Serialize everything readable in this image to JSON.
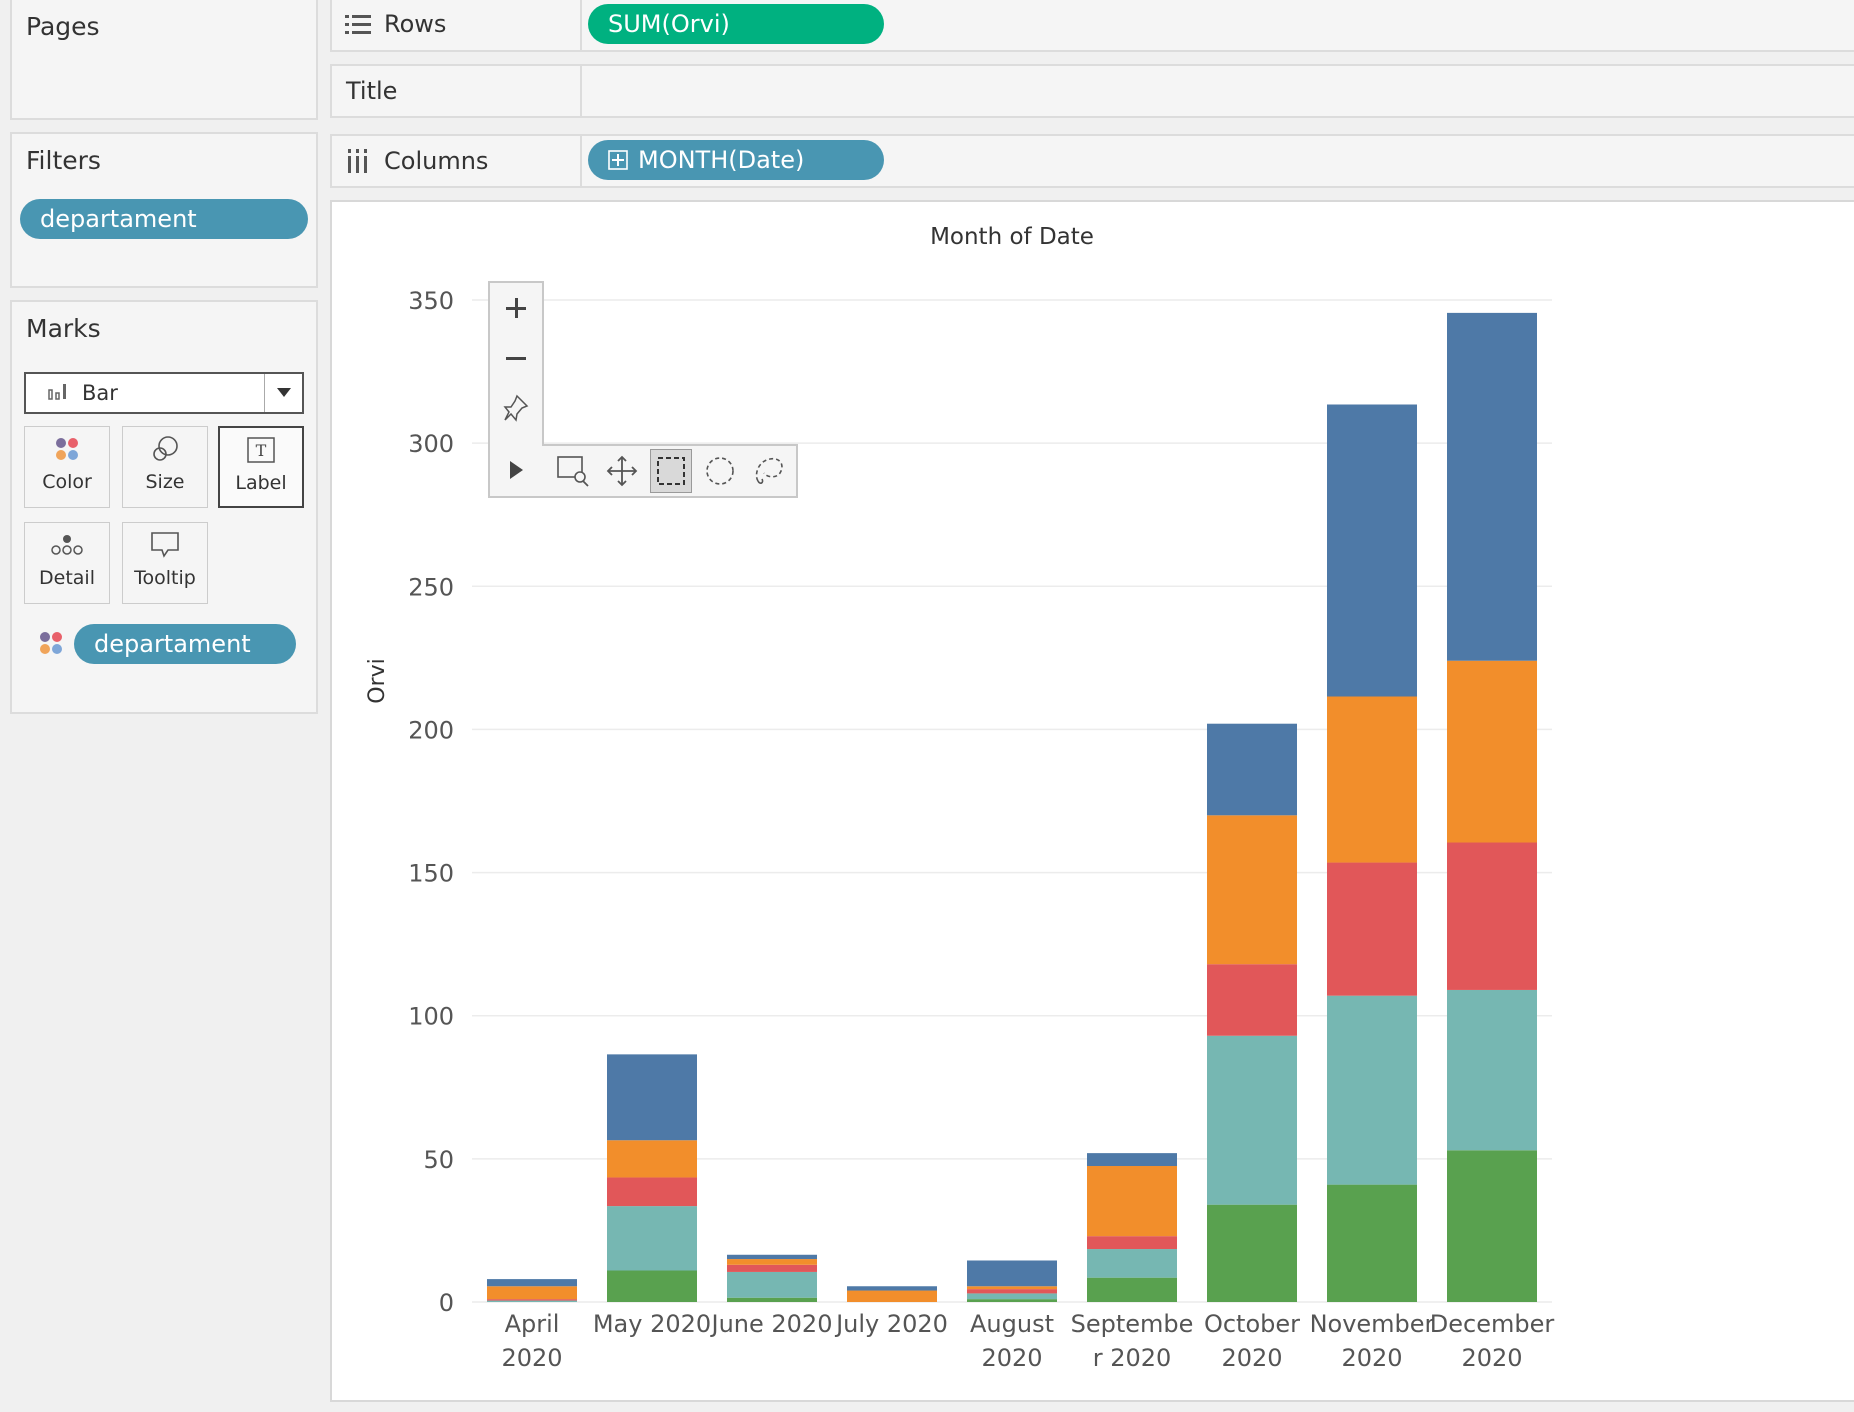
{
  "pages": {
    "title": "Pages"
  },
  "filters": {
    "title": "Filters",
    "pill": "departament"
  },
  "marks": {
    "title": "Marks",
    "mark_type": "Bar",
    "buttons": [
      "Color",
      "Size",
      "Label",
      "Detail",
      "Tooltip"
    ],
    "color_pill": "departament"
  },
  "shelves": {
    "rows_label": "Rows",
    "rows_pill": "SUM(Orvi)",
    "title_label": "Title",
    "columns_label": "Columns",
    "columns_pill": "MONTH(Date)"
  },
  "view": {
    "toolbar_icons": [
      "zoom-in-icon",
      "zoom-out-icon",
      "pin-icon",
      "expand-arrow-icon",
      "zoom-area-icon",
      "pan-icon",
      "rect-select-icon",
      "radial-select-icon",
      "lasso-select-icon"
    ]
  },
  "colors": {
    "blue": "#4e79a7",
    "orange": "#f28e2b",
    "red": "#e15759",
    "teal": "#76b7b2",
    "green": "#59a14f",
    "pill_blue": "#4996b2",
    "pill_green": "#00b180"
  },
  "chart_data": {
    "type": "bar",
    "stacked": true,
    "title": "Month of Date",
    "xlabel": "",
    "ylabel": "Orvi",
    "ylim": [
      0,
      350
    ],
    "yticks": [
      0,
      50,
      100,
      150,
      200,
      250,
      300,
      350
    ],
    "grid": true,
    "categories": [
      [
        "April",
        "2020"
      ],
      [
        "May 2020"
      ],
      [
        "June 2020"
      ],
      [
        "July 2020"
      ],
      [
        "August",
        "2020"
      ],
      [
        "Septembe",
        "r 2020"
      ],
      [
        "October",
        "2020"
      ],
      [
        "November",
        "2020"
      ],
      [
        "December",
        "2020"
      ]
    ],
    "series": [
      {
        "color": "#59a14f",
        "values": [
          0,
          11,
          1.5,
          0,
          1,
          8.5,
          34,
          41,
          53
        ]
      },
      {
        "color": "#76b7b2",
        "values": [
          0.5,
          22.5,
          9,
          0,
          2,
          10,
          59,
          66,
          56
        ]
      },
      {
        "color": "#e15759",
        "values": [
          0.5,
          10,
          2.5,
          0,
          1.5,
          4.5,
          25,
          46.5,
          51.5
        ]
      },
      {
        "color": "#f28e2b",
        "values": [
          4.5,
          13,
          2,
          4,
          1,
          24.5,
          52,
          58,
          63.5
        ]
      },
      {
        "color": "#4e79a7",
        "values": [
          2.5,
          30,
          1.5,
          1.5,
          9,
          4.5,
          32,
          102,
          121.5
        ]
      }
    ]
  }
}
